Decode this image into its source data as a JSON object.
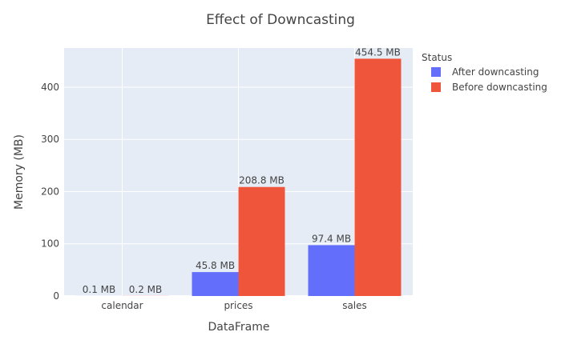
{
  "chart_data": {
    "type": "bar",
    "title": "Effect of Downcasting",
    "xlabel": "DataFrame",
    "ylabel": "Memory (MB)",
    "categories": [
      "calendar",
      "prices",
      "sales"
    ],
    "ylim": [
      0,
      475
    ],
    "yticks": [
      0,
      100,
      200,
      300,
      400
    ],
    "grid": true,
    "legend": {
      "title": "Status",
      "placement": "top-right-outside"
    },
    "series": [
      {
        "name": "After downcasting",
        "color": "#636efa",
        "values": [
          0.1,
          45.8,
          97.4
        ],
        "labels": [
          "0.1 MB",
          "45.8 MB",
          "97.4 MB"
        ]
      },
      {
        "name": "Before downcasting",
        "color": "#ef553b",
        "values": [
          0.2,
          208.8,
          454.5
        ],
        "labels": [
          "0.2 MB",
          "208.8 MB",
          "454.5 MB"
        ]
      }
    ],
    "plot_background": "#e5ecf6",
    "grid_color": "#ffffff"
  }
}
